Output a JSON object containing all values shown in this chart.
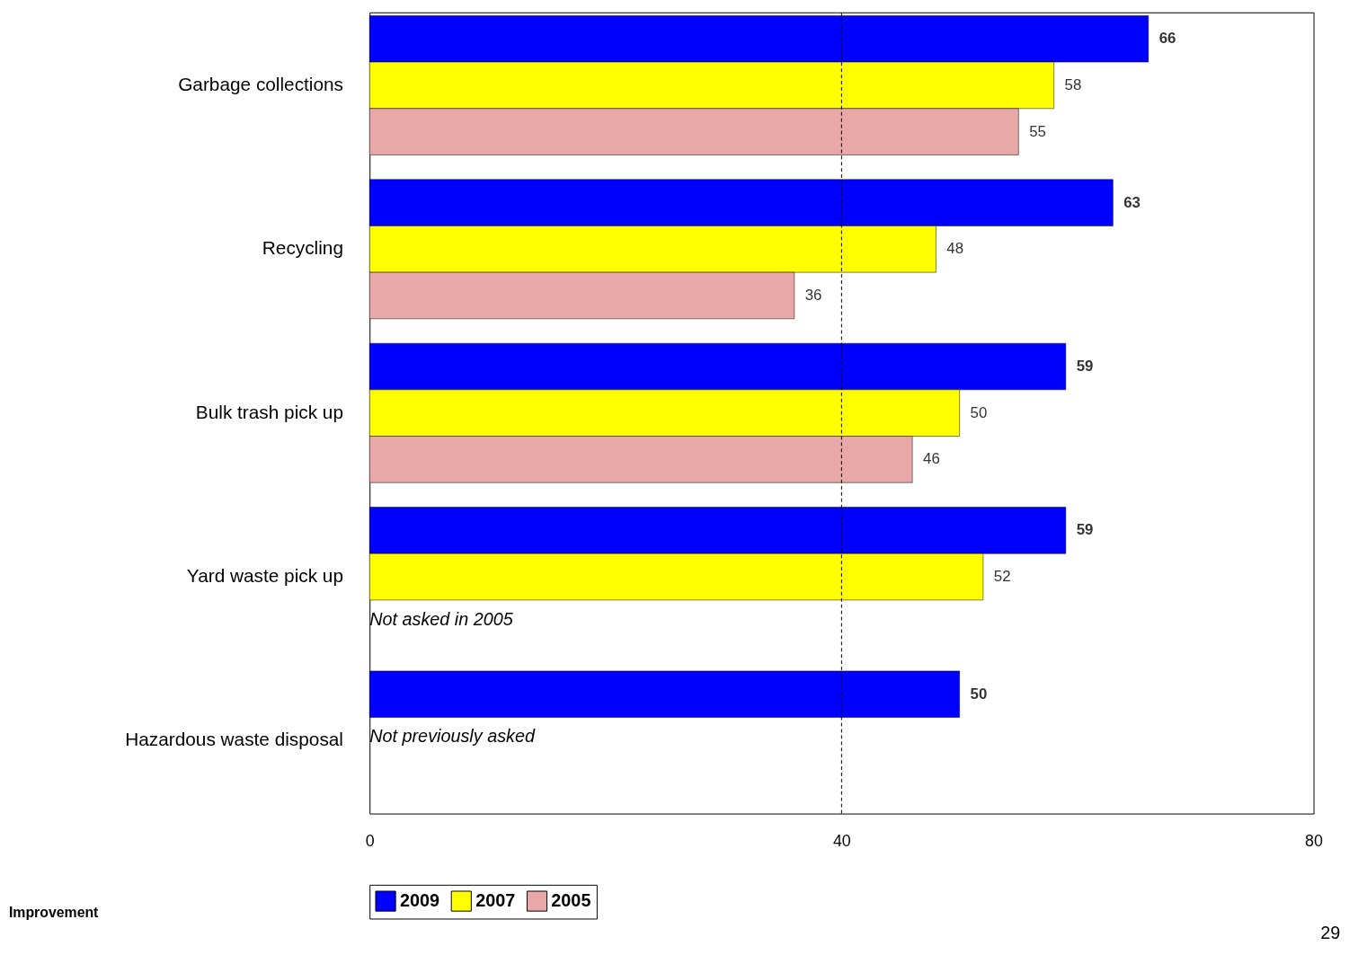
{
  "chart_data": {
    "type": "bar",
    "orientation": "horizontal",
    "categories": [
      "Garbage collections",
      "Recycling",
      "Bulk trash pick up",
      "Yard waste pick up",
      "Hazardous waste disposal"
    ],
    "series": [
      {
        "name": "2009",
        "color": "#0000ff",
        "values": [
          66,
          63,
          59,
          59,
          50
        ]
      },
      {
        "name": "2007",
        "color": "#ffff00",
        "values": [
          58,
          48,
          50,
          52,
          null
        ]
      },
      {
        "name": "2005",
        "color": "#e8a8a8",
        "values": [
          55,
          36,
          46,
          null,
          null
        ]
      }
    ],
    "xlim": [
      0,
      80
    ],
    "xticks": [
      0,
      40,
      80
    ],
    "grid": false,
    "data_labels": true,
    "legend": "bottom",
    "ref_lines": [
      {
        "axis": "x",
        "value": 40,
        "line_style": "dashed",
        "color": "#000000"
      }
    ],
    "annotations": [
      "Not asked in 2005",
      "Not previously asked",
      "Improvement",
      "29"
    ]
  }
}
